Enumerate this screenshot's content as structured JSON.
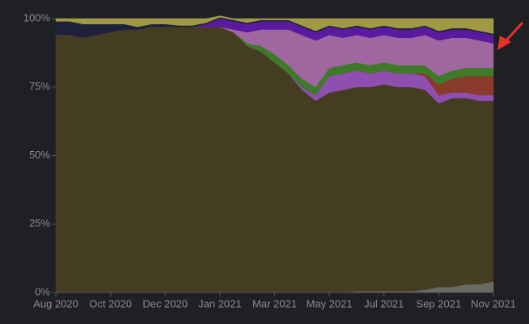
{
  "chart_data": {
    "type": "stacked-area",
    "categories": [
      "Aug 2020",
      null,
      null,
      null,
      "Oct 2020",
      null,
      null,
      null,
      "Dec 2020",
      null,
      null,
      null,
      "Jan 2021",
      null,
      null,
      null,
      "Mar 2021",
      null,
      null,
      null,
      "May 2021",
      null,
      null,
      null,
      "Jul 2021",
      null,
      null,
      null,
      "Sep 2021",
      null,
      null,
      null,
      "Nov 2021"
    ],
    "ylim": [
      0,
      100
    ],
    "yticks": [
      {
        "value": 0,
        "label": "0%"
      },
      {
        "value": 25,
        "label": "25%"
      },
      {
        "value": 50,
        "label": "50%"
      },
      {
        "value": 75,
        "label": "75%"
      },
      {
        "value": 100,
        "label": "100%"
      }
    ],
    "series": [
      {
        "color": "#6b6a62",
        "values": [
          0,
          0,
          0,
          0,
          0,
          0,
          0,
          0,
          0,
          0,
          0,
          0,
          0,
          0,
          0,
          0,
          0,
          0,
          0,
          0,
          0,
          0,
          0.5,
          0.5,
          0.5,
          0.5,
          0.5,
          1,
          2,
          2,
          3,
          3,
          4
        ]
      },
      {
        "color": "#443d22",
        "values": [
          94,
          94,
          93,
          94,
          95,
          96,
          96,
          97,
          97,
          97,
          97,
          97,
          97,
          95,
          90,
          88,
          84,
          80,
          74,
          70,
          73,
          74,
          74.5,
          74.5,
          75.5,
          74.5,
          74.5,
          73,
          67,
          69,
          68,
          67,
          66
        ]
      },
      {
        "color": "#8e4fb0",
        "values": [
          0,
          0,
          0,
          0,
          0,
          0,
          0,
          0,
          0,
          0,
          0,
          0,
          0,
          0,
          0,
          0,
          0,
          0,
          1,
          2,
          6,
          6,
          6,
          5,
          5,
          5,
          5,
          5,
          3,
          2,
          2,
          2,
          2
        ]
      },
      {
        "color": "#8a3a2a",
        "values": [
          0,
          0,
          0,
          0,
          0,
          0,
          0,
          0,
          0,
          0,
          0,
          0,
          0,
          0,
          0,
          0,
          0,
          0,
          0,
          0,
          0,
          0,
          0,
          0,
          0,
          0,
          0,
          1,
          4,
          5,
          6,
          7,
          7
        ]
      },
      {
        "color": "#3f7a2a",
        "values": [
          0,
          0,
          0,
          0,
          0,
          0,
          0,
          0,
          0,
          0,
          0,
          0,
          0,
          0,
          1,
          2,
          3,
          3,
          3,
          3,
          3,
          3,
          3,
          3,
          3,
          3,
          3,
          3,
          3,
          3,
          3,
          3,
          3
        ]
      },
      {
        "color": "#a066a0",
        "values": [
          0,
          0,
          0,
          0,
          0,
          0,
          0,
          0,
          0,
          0,
          0,
          0,
          0,
          1,
          4,
          6,
          9,
          13,
          16,
          17,
          12,
          10,
          10,
          10,
          10,
          10,
          10,
          11,
          13,
          12,
          11,
          10,
          9
        ]
      },
      {
        "color": "#5a1aa0",
        "values": [
          0,
          0,
          0,
          0,
          0,
          0,
          0,
          0,
          0,
          0,
          0,
          1,
          3,
          3,
          3,
          3,
          3,
          3,
          3,
          3,
          3,
          3,
          3,
          3,
          3,
          3,
          3,
          3,
          3,
          3,
          3,
          3,
          3
        ]
      },
      {
        "color": "#1e2238",
        "values": [
          5,
          5,
          5,
          4,
          3,
          2,
          1,
          1,
          1,
          0.5,
          0.5,
          0.5,
          0.5,
          0.5,
          0.5,
          0.5,
          0.5,
          0.5,
          0.5,
          0.5,
          0.5,
          0.5,
          0.5,
          0.5,
          0.5,
          0.5,
          0.5,
          0.5,
          0.5,
          0.5,
          0.5,
          0.5,
          0.5
        ]
      },
      {
        "color": "#a09a45",
        "values": [
          1,
          1,
          2,
          2,
          2,
          2,
          3,
          2,
          2,
          2.5,
          2.5,
          1.5,
          0.5,
          0.5,
          1.5,
          0.5,
          0.5,
          0.5,
          2.5,
          4.5,
          2.5,
          3.5,
          2.5,
          3.5,
          2.5,
          3.5,
          3.5,
          2.5,
          4.5,
          3.5,
          3.5,
          4.5,
          5.5
        ]
      }
    ]
  }
}
